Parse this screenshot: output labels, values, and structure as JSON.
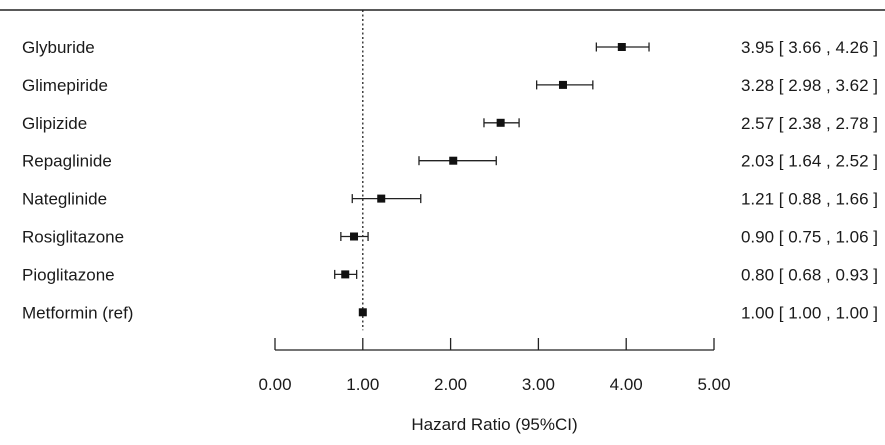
{
  "chart_data": {
    "type": "forest",
    "title": "",
    "xlabel": "Hazard Ratio (95%CI)",
    "ylabel": "",
    "xlim": [
      0,
      5
    ],
    "x_ticks": [
      0,
      1,
      2,
      3,
      4,
      5
    ],
    "x_tick_labels": [
      "0.00",
      "1.00",
      "2.00",
      "3.00",
      "4.00",
      "5.00"
    ],
    "reference_line": 1.0,
    "grid": false,
    "rows": [
      {
        "label": "Glyburide",
        "estimate": 3.95,
        "lower": 3.66,
        "upper": 4.26,
        "ci_text": "3.95 [ 3.66 , 4.26 ]"
      },
      {
        "label": "Glimepiride",
        "estimate": 3.28,
        "lower": 2.98,
        "upper": 3.62,
        "ci_text": "3.28 [ 2.98 , 3.62 ]"
      },
      {
        "label": "Glipizide",
        "estimate": 2.57,
        "lower": 2.38,
        "upper": 2.78,
        "ci_text": "2.57 [ 2.38 , 2.78 ]"
      },
      {
        "label": "Repaglinide",
        "estimate": 2.03,
        "lower": 1.64,
        "upper": 2.52,
        "ci_text": "2.03 [ 1.64 , 2.52 ]"
      },
      {
        "label": "Nateglinide",
        "estimate": 1.21,
        "lower": 0.88,
        "upper": 1.66,
        "ci_text": "1.21 [ 0.88 , 1.66 ]"
      },
      {
        "label": "Rosiglitazone",
        "estimate": 0.9,
        "lower": 0.75,
        "upper": 1.06,
        "ci_text": "0.90 [ 0.75 , 1.06 ]"
      },
      {
        "label": "Pioglitazone",
        "estimate": 0.8,
        "lower": 0.68,
        "upper": 0.93,
        "ci_text": "0.80 [ 0.68 , 0.93 ]"
      },
      {
        "label": "Metformin (ref)",
        "estimate": 1.0,
        "lower": 1.0,
        "upper": 1.0,
        "ci_text": "1.00 [ 1.00 , 1.00 ]"
      }
    ]
  }
}
